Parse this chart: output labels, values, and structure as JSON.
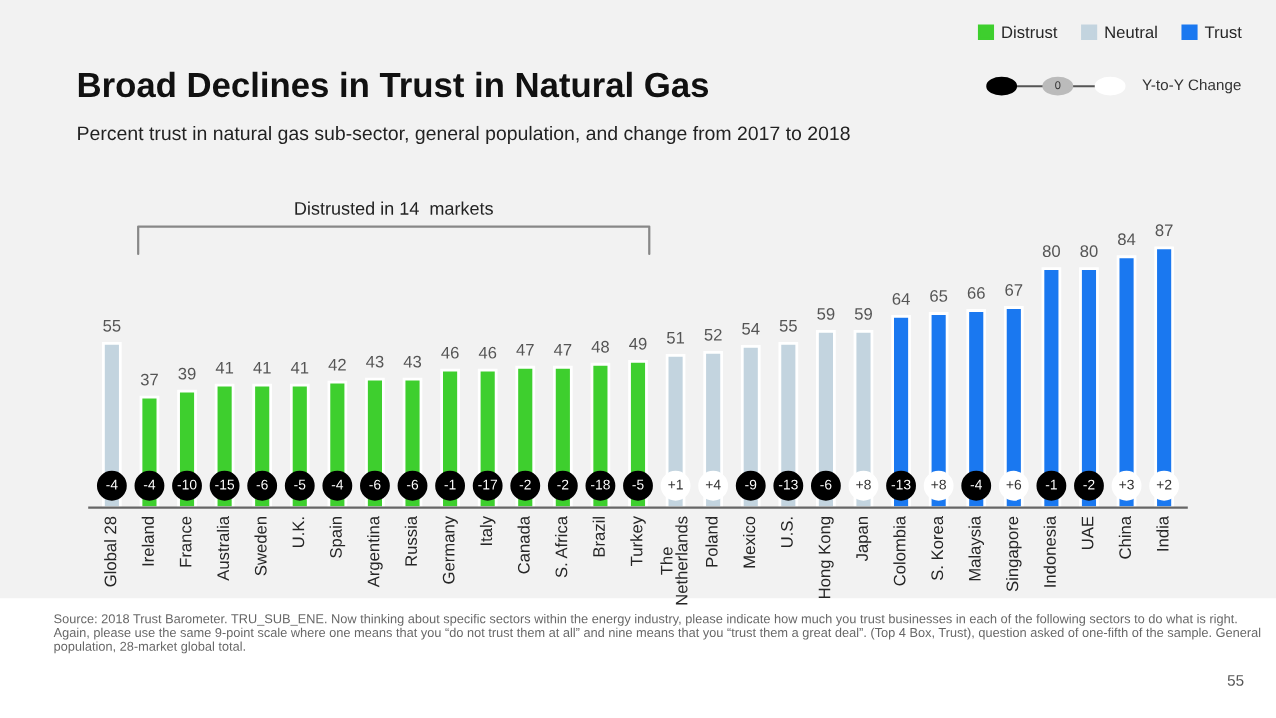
{
  "chart_data": {
    "type": "bar",
    "title": "Broad Declines in Trust in Natural Gas",
    "subtitle": "Percent trust in natural gas sub-sector, general population, and change from 2017 to 2018",
    "categories": [
      "Global 28",
      "Ireland",
      "France",
      "Australia",
      "Sweden",
      "U.K.",
      "Spain",
      "Argentina",
      "Russia",
      "Germany",
      "Italy",
      "Canada",
      "S. Africa",
      "Brazil",
      "Turkey",
      "The\nNetherlands",
      "Poland",
      "Mexico",
      "U.S.",
      "Hong Kong",
      "Japan",
      "Colombia",
      "S. Korea",
      "Malaysia",
      "Singapore",
      "Indonesia",
      "UAE",
      "China",
      "India"
    ],
    "series": [
      {
        "name": "Distrust",
        "color": "#3ecf2e",
        "values": [
          null,
          37,
          39,
          41,
          41,
          41,
          42,
          43,
          43,
          46,
          46,
          47,
          47,
          48,
          49,
          null,
          null,
          null,
          null,
          null,
          null,
          null,
          null,
          null,
          null,
          null,
          null,
          null,
          null
        ]
      },
      {
        "name": "Neutral",
        "color": "#c3d4df",
        "values": [
          55,
          null,
          null,
          null,
          null,
          null,
          null,
          null,
          null,
          null,
          null,
          null,
          null,
          null,
          null,
          51,
          52,
          54,
          55,
          59,
          59,
          null,
          null,
          null,
          null,
          null,
          null,
          null,
          null
        ]
      },
      {
        "name": "Trust",
        "color": "#1a78f0",
        "values": [
          null,
          null,
          null,
          null,
          null,
          null,
          null,
          null,
          null,
          null,
          null,
          null,
          null,
          null,
          null,
          null,
          null,
          null,
          null,
          null,
          null,
          64,
          65,
          66,
          67,
          80,
          80,
          84,
          87
        ]
      }
    ],
    "value_labels": [
      "-4",
      "-4",
      "-10",
      "-15",
      "-6",
      "-5",
      "-4",
      "-6",
      "-6",
      "-1",
      "-17",
      "-2",
      "-2",
      "-18",
      "-5",
      "+1",
      "+4",
      "-9",
      "-13",
      "-6",
      "+8",
      "-13",
      "+8",
      "-4",
      "+6",
      "-1",
      "-2",
      "+3",
      "+2"
    ],
    "data_labels": true,
    "legend": "top right",
    "grid": false,
    "annotations": [
      "Distrusted in 14  markets",
      "Y-to-Y Change",
      "0",
      "Source: 2018 Trust Barometer. TRU_SUB_ENE. Now thinking about specific sectors within the energy industry, please indicate how much you trust businesses in each of the following sectors to do what is right. Again, please use the same 9-point scale where one means that you “do not trust them at all” and nine means that you “trust them a great deal”. (Top 4 Box, Trust), question asked of one-fifth of the sample. General population, 28-market global total.",
      "55"
    ]
  }
}
